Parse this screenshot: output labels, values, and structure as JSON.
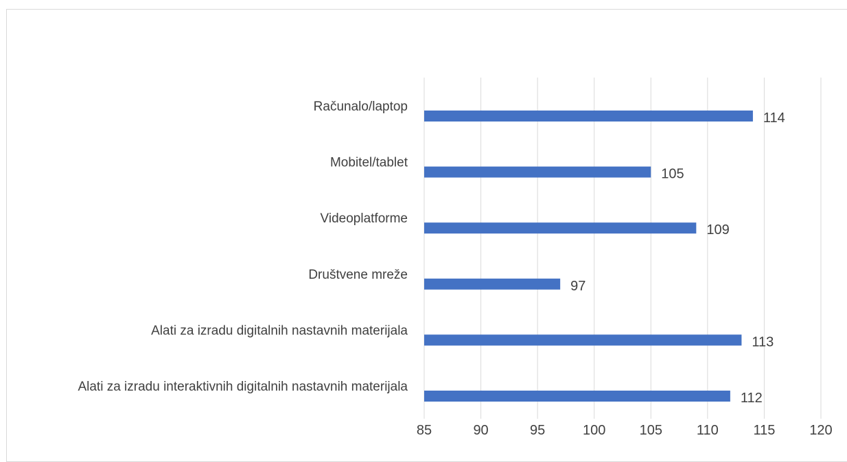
{
  "chart_data": {
    "type": "bar",
    "orientation": "horizontal",
    "title": "",
    "xlabel": "",
    "ylabel": "",
    "categories": [
      "Računalo/laptop",
      "Mobitel/tablet",
      "Videoplatforme",
      "Društvene mreže",
      "Alati za izradu digitalnih nastavnih materijala",
      "Alati za izradu interaktivnih digitalnih nastavnih materijala"
    ],
    "values": [
      114,
      105,
      109,
      97,
      113,
      112
    ],
    "xlim": [
      85,
      120
    ],
    "xticks": [
      85,
      90,
      95,
      100,
      105,
      110,
      115,
      120
    ],
    "grid": "vertical",
    "legend": "none",
    "data_labels": true,
    "bar_color": "#4472C4",
    "gridline_color": "#d9d9d9",
    "text_color": "#404040"
  }
}
